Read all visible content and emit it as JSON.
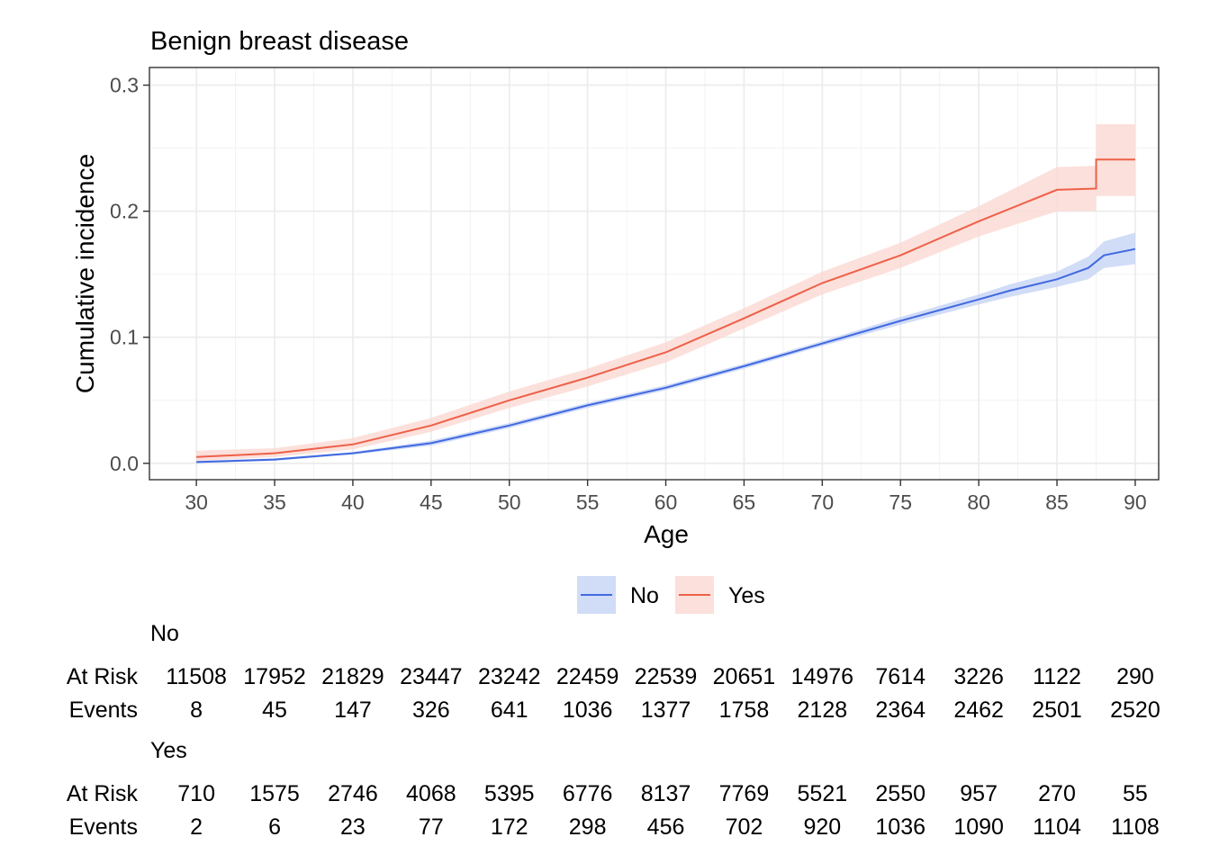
{
  "chart_data": {
    "type": "line",
    "title": "Benign breast disease",
    "xlabel": "Age",
    "ylabel": "Cumulative incidence",
    "xlim": [
      27,
      91.5
    ],
    "ylim": [
      -0.013,
      0.314
    ],
    "x_ticks": [
      30,
      35,
      40,
      45,
      50,
      55,
      60,
      65,
      70,
      75,
      80,
      85,
      90
    ],
    "y_ticks": [
      0.0,
      0.1,
      0.2,
      0.3
    ],
    "y_tick_labels": [
      "0.0",
      "0.1",
      "0.2",
      "0.3"
    ],
    "grid": true,
    "legend_position": "bottom",
    "series": [
      {
        "name": "No",
        "color": "#4169e1",
        "band_color": "#c6d3f5",
        "x": [
          30,
          35,
          40,
          45,
          50,
          55,
          60,
          65,
          70,
          75,
          80,
          82,
          85,
          87,
          88,
          90
        ],
        "y": [
          0.001,
          0.003,
          0.008,
          0.016,
          0.03,
          0.046,
          0.06,
          0.077,
          0.095,
          0.113,
          0.13,
          0.137,
          0.146,
          0.155,
          0.165,
          0.17
        ],
        "lower": [
          0.0,
          0.002,
          0.007,
          0.014,
          0.028,
          0.044,
          0.058,
          0.075,
          0.093,
          0.11,
          0.126,
          0.132,
          0.14,
          0.146,
          0.155,
          0.158
        ],
        "upper": [
          0.002,
          0.004,
          0.009,
          0.018,
          0.032,
          0.048,
          0.062,
          0.079,
          0.097,
          0.116,
          0.134,
          0.142,
          0.152,
          0.164,
          0.176,
          0.183
        ]
      },
      {
        "name": "Yes",
        "color": "#ee6048",
        "band_color": "#fbd8d2",
        "x": [
          30,
          35,
          40,
          45,
          50,
          55,
          60,
          65,
          70,
          75,
          80,
          85,
          87.5,
          87.5,
          90
        ],
        "y": [
          0.005,
          0.008,
          0.015,
          0.03,
          0.05,
          0.068,
          0.088,
          0.115,
          0.143,
          0.165,
          0.192,
          0.217,
          0.218,
          0.241,
          0.241
        ],
        "lower": [
          0.002,
          0.005,
          0.011,
          0.025,
          0.044,
          0.061,
          0.08,
          0.107,
          0.134,
          0.155,
          0.18,
          0.2,
          0.2,
          0.212,
          0.212
        ],
        "upper": [
          0.01,
          0.012,
          0.02,
          0.036,
          0.057,
          0.075,
          0.096,
          0.123,
          0.152,
          0.175,
          0.204,
          0.235,
          0.236,
          0.269,
          0.269
        ]
      }
    ],
    "risk_table": {
      "row_labels": [
        "At Risk",
        "Events"
      ],
      "groups": [
        {
          "name": "No",
          "at_risk": [
            "11508",
            "17952",
            "21829",
            "23447",
            "23242",
            "22459",
            "22539",
            "20651",
            "14976",
            "7614",
            "3226",
            "1122",
            "290"
          ],
          "events": [
            "8",
            "45",
            "147",
            "326",
            "641",
            "1036",
            "1377",
            "1758",
            "2128",
            "2364",
            "2462",
            "2501",
            "2520"
          ]
        },
        {
          "name": "Yes",
          "at_risk": [
            "710",
            "1575",
            "2746",
            "4068",
            "5395",
            "6776",
            "8137",
            "7769",
            "5521",
            "2550",
            "957",
            "270",
            "55"
          ],
          "events": [
            "2",
            "6",
            "23",
            "77",
            "172",
            "298",
            "456",
            "702",
            "920",
            "1036",
            "1090",
            "1104",
            "1108"
          ]
        }
      ]
    }
  }
}
